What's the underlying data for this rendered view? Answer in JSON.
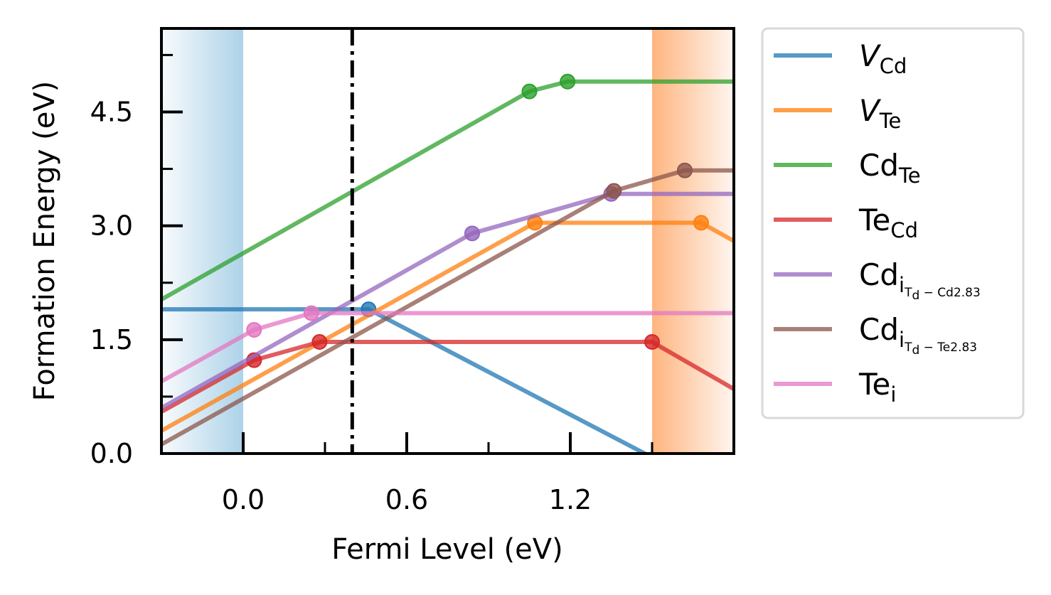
{
  "chart_data": {
    "type": "line",
    "xlabel": "Fermi Level (eV)",
    "ylabel": "Formation Energy (eV)",
    "xlim": [
      -0.3,
      1.8
    ],
    "ylim": [
      0,
      5.6
    ],
    "x_ticks": [
      0.0,
      0.6,
      1.2
    ],
    "x_tick_labels": [
      "0.0",
      "0.6",
      "1.2"
    ],
    "x_minor_ticks": [
      0.3,
      0.9,
      1.5
    ],
    "y_ticks": [
      0.0,
      1.5,
      3.0,
      4.5
    ],
    "y_tick_labels": [
      "0.0",
      "1.5",
      "3.0",
      "4.5"
    ],
    "y_minor_ticks": [
      0.75,
      2.25,
      3.75,
      5.25
    ],
    "grid": false,
    "legend_position": "outside-right",
    "valence_band_region": {
      "from": -0.3,
      "to": 0.0,
      "color": "#6baed6"
    },
    "conduction_band_region": {
      "from": 1.5,
      "to": 1.8,
      "color": "#fd8d3c"
    },
    "reference_line": {
      "x": 0.4,
      "style": "dash-dot"
    },
    "series": [
      {
        "name": "V",
        "sub": "Cd",
        "italic": true,
        "color": "#1f77b4",
        "x": [
          -0.3,
          0.46,
          1.5
        ],
        "y": [
          1.9,
          1.9,
          -0.05
        ],
        "markers": [
          0.46
        ]
      },
      {
        "name": "V",
        "sub": "Te",
        "italic": true,
        "color": "#ff7f0e",
        "x": [
          -0.3,
          1.07,
          1.68,
          1.8
        ],
        "y": [
          0.3,
          3.04,
          3.04,
          2.8
        ],
        "markers": [
          1.07,
          1.68
        ]
      },
      {
        "name": "Cd",
        "sub": "Te",
        "color": "#2ca02c",
        "x": [
          -0.3,
          1.05,
          1.19,
          1.8
        ],
        "y": [
          2.03,
          4.77,
          4.9,
          4.9
        ],
        "markers": [
          1.05,
          1.19
        ]
      },
      {
        "name": "Te",
        "sub": "Cd",
        "color": "#d62728",
        "x": [
          -0.3,
          0.04,
          0.28,
          1.5,
          1.8
        ],
        "y": [
          0.55,
          1.23,
          1.47,
          1.47,
          0.85
        ],
        "markers": [
          0.04,
          0.28,
          1.5
        ]
      },
      {
        "name": "Cd",
        "sub": "i",
        "subsub": "T",
        "subsubsub": "d",
        "suffix": " − Cd2.83",
        "color": "#9467bd",
        "x": [
          -0.3,
          0.84,
          1.35,
          1.8
        ],
        "y": [
          0.6,
          2.9,
          3.42,
          3.42
        ],
        "markers": [
          0.84,
          1.35
        ]
      },
      {
        "name": "Cd",
        "sub": "i",
        "subsub": "T",
        "subsubsub": "d",
        "suffix": " − Te2.83",
        "color": "#8c564b",
        "x": [
          -0.3,
          1.36,
          1.62,
          1.8
        ],
        "y": [
          0.12,
          3.46,
          3.73,
          3.73
        ],
        "markers": [
          1.36,
          1.62
        ]
      },
      {
        "name": "Te",
        "sub": "i",
        "color": "#e377c2",
        "x": [
          -0.3,
          0.04,
          0.25,
          1.8
        ],
        "y": [
          0.95,
          1.63,
          1.85,
          1.85
        ],
        "markers": [
          0.04,
          0.25
        ]
      }
    ]
  }
}
